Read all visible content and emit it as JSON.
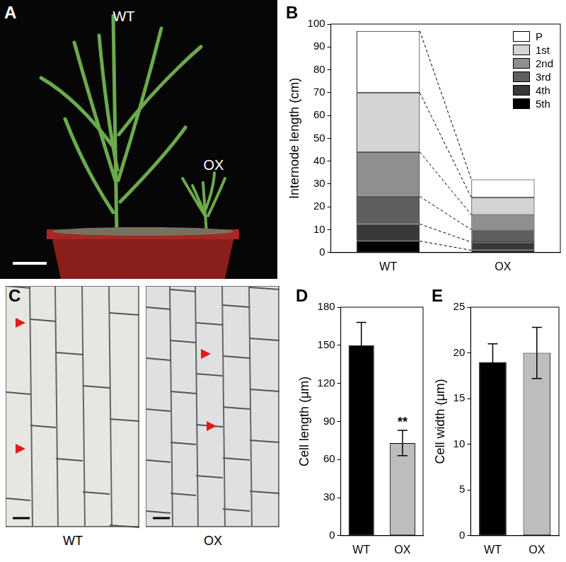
{
  "chart_data": [
    {
      "panel": "B",
      "type": "bar",
      "stacked": true,
      "categories": [
        "WT",
        "OX"
      ],
      "y_label": "Internode length (cm)",
      "ylim": [
        0,
        100
      ],
      "yticks": [
        0,
        10,
        20,
        30,
        40,
        50,
        60,
        70,
        80,
        90,
        100
      ],
      "grid": false,
      "legend": "upper right",
      "series": [
        {
          "name": "P",
          "color": "#ffffff",
          "values": [
            27,
            8
          ]
        },
        {
          "name": "1st",
          "color": "#d4d4d4",
          "values": [
            26,
            7.5
          ]
        },
        {
          "name": "2nd",
          "color": "#8f8f8f",
          "values": [
            19.5,
            6.5
          ]
        },
        {
          "name": "3rd",
          "color": "#5f5f5f",
          "values": [
            12,
            5.5
          ]
        },
        {
          "name": "4th",
          "color": "#383838",
          "values": [
            7.5,
            3.5
          ]
        },
        {
          "name": "5th",
          "color": "#000000",
          "values": [
            5,
            1
          ]
        }
      ]
    },
    {
      "panel": "D",
      "type": "bar",
      "categories": [
        "WT",
        "OX"
      ],
      "values": [
        150,
        73
      ],
      "errors": [
        18,
        10
      ],
      "colors": [
        "#000000",
        "#bdbdbd"
      ],
      "y_label": "Cell length (μm)",
      "ylim": [
        0,
        180
      ],
      "yticks": [
        0,
        30,
        60,
        90,
        120,
        150,
        180
      ],
      "grid": false,
      "annotations": [
        {
          "category": "OX",
          "text": "**"
        }
      ]
    },
    {
      "panel": "E",
      "type": "bar",
      "categories": [
        "WT",
        "OX"
      ],
      "values": [
        19,
        20
      ],
      "errors": [
        2,
        2.8
      ],
      "colors": [
        "#000000",
        "#bdbdbd"
      ],
      "y_label": "Cell width (μm)",
      "ylim": [
        0,
        25
      ],
      "yticks": [
        0,
        5,
        10,
        15,
        20,
        25
      ],
      "grid": false
    }
  ],
  "photos": [
    {
      "panel": "A",
      "labels": [
        "WT",
        "OX"
      ]
    },
    {
      "panel": "C",
      "labels": [
        "WT",
        "OX"
      ]
    }
  ]
}
